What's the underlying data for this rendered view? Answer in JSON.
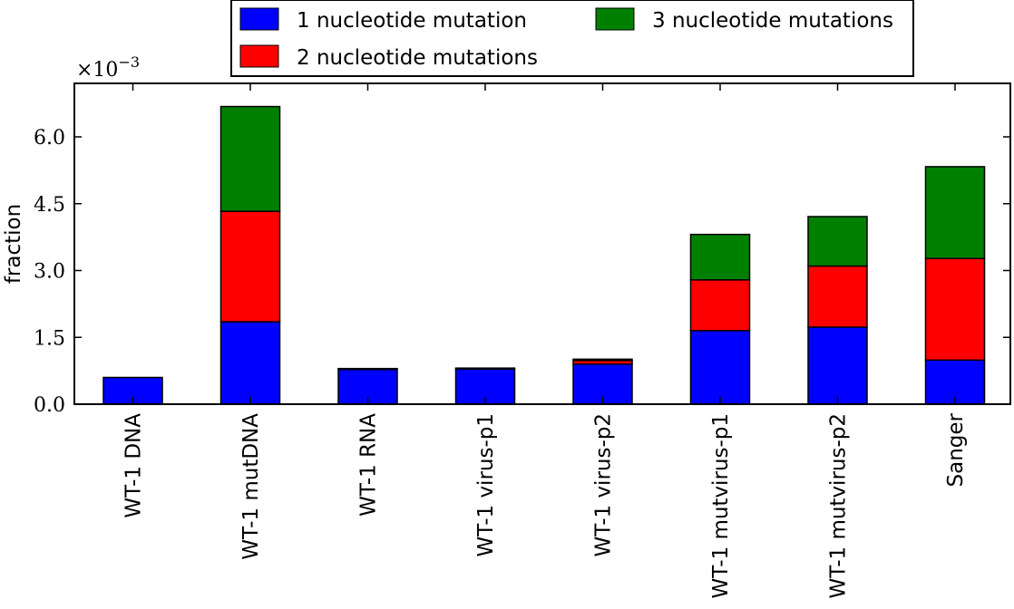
{
  "chart_data": {
    "type": "bar",
    "stacked": true,
    "categories": [
      "WT-1 DNA",
      "WT-1 mutDNA",
      "WT-1 RNA",
      "WT-1 virus-p1",
      "WT-1 virus-p2",
      "WT-1 mutvirus-p1",
      "WT-1 mutvirus-p2",
      "Sanger"
    ],
    "series": [
      {
        "name": "1 nucleotide mutation",
        "color": "#0000ff",
        "values": [
          0.6,
          1.85,
          0.78,
          0.79,
          0.9,
          1.65,
          1.73,
          0.99
        ]
      },
      {
        "name": "2 nucleotide mutations",
        "color": "#ff0000",
        "values": [
          0.0,
          2.48,
          0.02,
          0.02,
          0.08,
          1.14,
          1.37,
          2.28
        ]
      },
      {
        "name": "3 nucleotide mutations",
        "color": "#008000",
        "values": [
          0.0,
          2.35,
          0.0,
          0.0,
          0.03,
          1.02,
          1.11,
          2.06
        ]
      }
    ],
    "ylabel": "fraction",
    "y_multiplier": "×10",
    "y_multiplier_exp": "−3",
    "ylim": [
      0,
      7.2
    ],
    "yticks": [
      "0.0",
      "1.5",
      "3.0",
      "4.5",
      "6.0"
    ],
    "ytick_values": [
      0,
      1.5,
      3.0,
      4.5,
      6.0
    ],
    "grid": false,
    "legend_position": "top"
  }
}
